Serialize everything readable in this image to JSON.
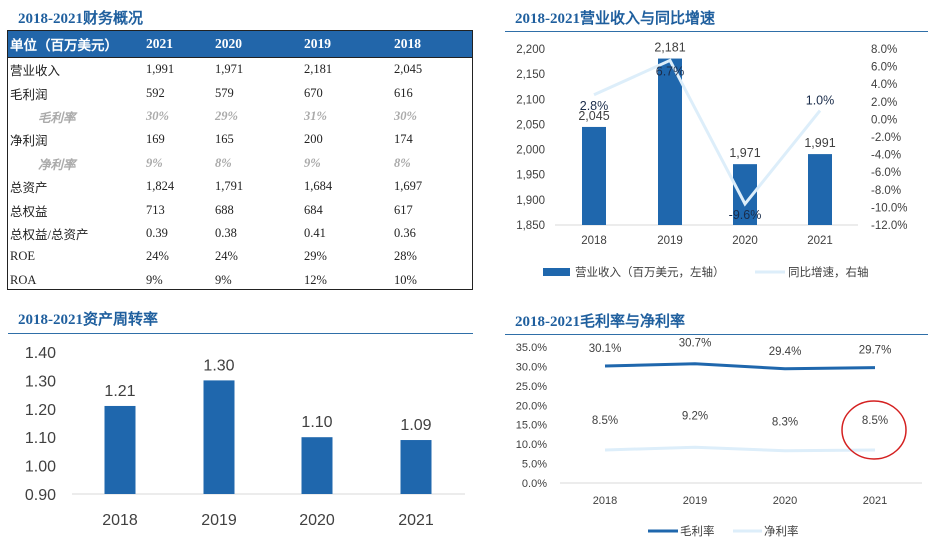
{
  "table": {
    "title": "2018-2021财务概况",
    "header": [
      "单位（百万美元）",
      "2021",
      "2020",
      "2019",
      "2018"
    ],
    "rows": [
      {
        "label": "营业收入",
        "values": [
          "1,991",
          "1,971",
          "2,181",
          "2,045"
        ],
        "sub": false
      },
      {
        "label": "毛利润",
        "values": [
          "592",
          "579",
          "670",
          "616"
        ],
        "sub": false
      },
      {
        "label": "毛利率",
        "values": [
          "30%",
          "29%",
          "31%",
          "30%"
        ],
        "sub": true
      },
      {
        "label": "净利润",
        "values": [
          "169",
          "165",
          "200",
          "174"
        ],
        "sub": false
      },
      {
        "label": "净利率",
        "values": [
          "9%",
          "8%",
          "9%",
          "8%"
        ],
        "sub": true
      },
      {
        "label": "总资产",
        "values": [
          "1,824",
          "1,791",
          "1,684",
          "1,697"
        ],
        "sub": false
      },
      {
        "label": "总权益",
        "values": [
          "713",
          "688",
          "684",
          "617"
        ],
        "sub": false
      },
      {
        "label": "总权益/总资产",
        "values": [
          "0.39",
          "0.38",
          "0.41",
          "0.36"
        ],
        "sub": false
      },
      {
        "label": "ROE",
        "values": [
          "24%",
          "24%",
          "29%",
          "28%"
        ],
        "sub": false
      },
      {
        "label": "ROA",
        "values": [
          "9%",
          "9%",
          "12%",
          "10%"
        ],
        "sub": false
      }
    ]
  },
  "chart_data": [
    {
      "type": "bar+line",
      "title": "2018-2021营业收入与同比增速",
      "categories": [
        "2018",
        "2019",
        "2020",
        "2021"
      ],
      "series": [
        {
          "name": "营业收入（百万美元，左轴）",
          "type": "bar",
          "axis": "left",
          "values": [
            2045,
            2181,
            1971,
            1991
          ],
          "labels": [
            "2,045",
            "2,181",
            "1,971",
            "1,991"
          ],
          "color": "#1f67ad"
        },
        {
          "name": "同比增速，右轴",
          "type": "line",
          "axis": "right",
          "values": [
            2.8,
            6.7,
            -9.6,
            1.0
          ],
          "labels": [
            "2.8%",
            "6.7%",
            "-9.6%",
            "1.0%"
          ],
          "color": "#ddeefa"
        }
      ],
      "ylim_left": [
        1850,
        2200
      ],
      "yticks_left": [
        "1,850",
        "1,900",
        "1,950",
        "2,000",
        "2,050",
        "2,100",
        "2,150",
        "2,200"
      ],
      "ylim_right": [
        -12,
        8
      ],
      "yticks_right": [
        "-12.0%",
        "-10.0%",
        "-8.0%",
        "-6.0%",
        "-4.0%",
        "-2.0%",
        "0.0%",
        "2.0%",
        "4.0%",
        "6.0%",
        "8.0%"
      ],
      "legend": "bottom"
    },
    {
      "type": "bar",
      "title": "2018-2021资产周转率",
      "categories": [
        "2018",
        "2019",
        "2020",
        "2021"
      ],
      "values": [
        1.21,
        1.3,
        1.1,
        1.09
      ],
      "labels": [
        "1.21",
        "1.30",
        "1.10",
        "1.09"
      ],
      "ylim": [
        0.9,
        1.4
      ],
      "yticks": [
        "0.90",
        "1.00",
        "1.10",
        "1.20",
        "1.30",
        "1.40"
      ],
      "color": "#1f67ad"
    },
    {
      "type": "line",
      "title": "2018-2021毛利率与净利率",
      "categories": [
        "2018",
        "2019",
        "2020",
        "2021"
      ],
      "series": [
        {
          "name": "毛利率",
          "values": [
            30.1,
            30.7,
            29.4,
            29.7
          ],
          "labels": [
            "30.1%",
            "30.7%",
            "29.4%",
            "29.7%"
          ],
          "color": "#1f67ad"
        },
        {
          "name": "净利率",
          "values": [
            8.5,
            9.2,
            8.3,
            8.5
          ],
          "labels": [
            "8.5%",
            "9.2%",
            "8.3%",
            "8.5%"
          ],
          "color": "#ddeefa"
        }
      ],
      "ylim": [
        0,
        35
      ],
      "yticks": [
        "0.0%",
        "5.0%",
        "10.0%",
        "15.0%",
        "20.0%",
        "25.0%",
        "30.0%",
        "35.0%"
      ],
      "legend": "bottom",
      "annotation": {
        "shape": "circle",
        "target": "净利率 2021",
        "color": "#d42020"
      }
    }
  ]
}
